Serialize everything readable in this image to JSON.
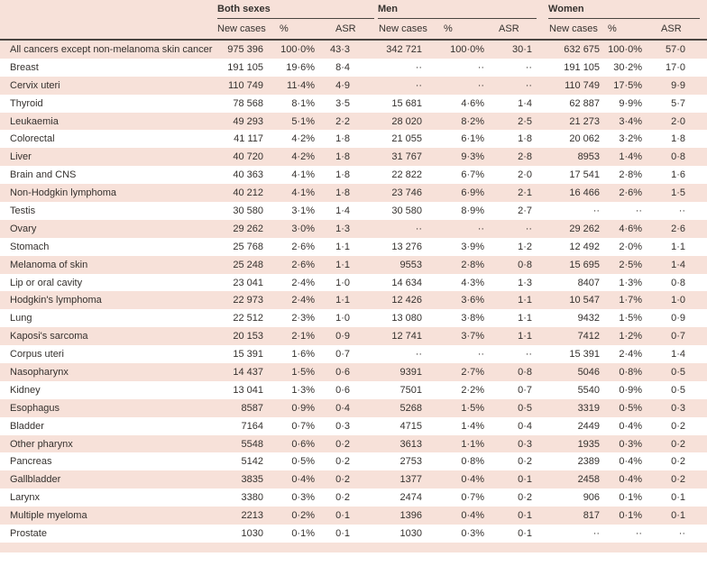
{
  "colors": {
    "row_pink": "#f7e1d9",
    "row_white": "#ffffff",
    "text": "#35312e",
    "rule_dark": "#4a4440"
  },
  "table": {
    "column_groups": [
      {
        "label": "Both sexes"
      },
      {
        "label": "Men"
      },
      {
        "label": "Women"
      }
    ],
    "subheaders": [
      "New cases",
      "%",
      "ASR"
    ],
    "missing_marker": "··",
    "rows": [
      {
        "label": "All cancers except non-melanoma skin cancer",
        "both": [
          "975 396",
          "100·0%",
          "43·3"
        ],
        "men": [
          "342 721",
          "100·0%",
          "30·1"
        ],
        "women": [
          "632 675",
          "100·0%",
          "57·0"
        ]
      },
      {
        "label": "Breast",
        "both": [
          "191 105",
          "19·6%",
          "8·4"
        ],
        "men": [
          "··",
          "··",
          "··"
        ],
        "women": [
          "191 105",
          "30·2%",
          "17·0"
        ]
      },
      {
        "label": "Cervix uteri",
        "both": [
          "110 749",
          "11·4%",
          "4·9"
        ],
        "men": [
          "··",
          "··",
          "··"
        ],
        "women": [
          "110 749",
          "17·5%",
          "9·9"
        ]
      },
      {
        "label": "Thyroid",
        "both": [
          "78 568",
          "8·1%",
          "3·5"
        ],
        "men": [
          "15 681",
          "4·6%",
          "1·4"
        ],
        "women": [
          "62 887",
          "9·9%",
          "5·7"
        ]
      },
      {
        "label": "Leukaemia",
        "both": [
          "49 293",
          "5·1%",
          "2·2"
        ],
        "men": [
          "28 020",
          "8·2%",
          "2·5"
        ],
        "women": [
          "21 273",
          "3·4%",
          "2·0"
        ]
      },
      {
        "label": "Colorectal",
        "both": [
          "41 117",
          "4·2%",
          "1·8"
        ],
        "men": [
          "21 055",
          "6·1%",
          "1·8"
        ],
        "women": [
          "20 062",
          "3·2%",
          "1·8"
        ]
      },
      {
        "label": "Liver",
        "both": [
          "40 720",
          "4·2%",
          "1·8"
        ],
        "men": [
          "31 767",
          "9·3%",
          "2·8"
        ],
        "women": [
          "8953",
          "1·4%",
          "0·8"
        ]
      },
      {
        "label": "Brain and CNS",
        "both": [
          "40 363",
          "4·1%",
          "1·8"
        ],
        "men": [
          "22 822",
          "6·7%",
          "2·0"
        ],
        "women": [
          "17 541",
          "2·8%",
          "1·6"
        ]
      },
      {
        "label": "Non-Hodgkin lymphoma",
        "both": [
          "40 212",
          "4·1%",
          "1·8"
        ],
        "men": [
          "23 746",
          "6·9%",
          "2·1"
        ],
        "women": [
          "16 466",
          "2·6%",
          "1·5"
        ]
      },
      {
        "label": "Testis",
        "both": [
          "30 580",
          "3·1%",
          "1·4"
        ],
        "men": [
          "30 580",
          "8·9%",
          "2·7"
        ],
        "women": [
          "··",
          "··",
          "··"
        ]
      },
      {
        "label": "Ovary",
        "both": [
          "29 262",
          "3·0%",
          "1·3"
        ],
        "men": [
          "··",
          "··",
          "··"
        ],
        "women": [
          "29 262",
          "4·6%",
          "2·6"
        ]
      },
      {
        "label": "Stomach",
        "both": [
          "25 768",
          "2·6%",
          "1·1"
        ],
        "men": [
          "13 276",
          "3·9%",
          "1·2"
        ],
        "women": [
          "12 492",
          "2·0%",
          "1·1"
        ]
      },
      {
        "label": "Melanoma of skin",
        "both": [
          "25 248",
          "2·6%",
          "1·1"
        ],
        "men": [
          "9553",
          "2·8%",
          "0·8"
        ],
        "women": [
          "15 695",
          "2·5%",
          "1·4"
        ]
      },
      {
        "label": "Lip or oral cavity",
        "both": [
          "23 041",
          "2·4%",
          "1·0"
        ],
        "men": [
          "14 634",
          "4·3%",
          "1·3"
        ],
        "women": [
          "8407",
          "1·3%",
          "0·8"
        ]
      },
      {
        "label": "Hodgkin's lymphoma",
        "both": [
          "22 973",
          "2·4%",
          "1·1"
        ],
        "men": [
          "12 426",
          "3·6%",
          "1·1"
        ],
        "women": [
          "10 547",
          "1·7%",
          "1·0"
        ]
      },
      {
        "label": "Lung",
        "both": [
          "22 512",
          "2·3%",
          "1·0"
        ],
        "men": [
          "13 080",
          "3·8%",
          "1·1"
        ],
        "women": [
          "9432",
          "1·5%",
          "0·9"
        ]
      },
      {
        "label": "Kaposi's sarcoma",
        "both": [
          "20 153",
          "2·1%",
          "0·9"
        ],
        "men": [
          "12 741",
          "3·7%",
          "1·1"
        ],
        "women": [
          "7412",
          "1·2%",
          "0·7"
        ]
      },
      {
        "label": "Corpus uteri",
        "both": [
          "15 391",
          "1·6%",
          "0·7"
        ],
        "men": [
          "··",
          "··",
          "··"
        ],
        "women": [
          "15 391",
          "2·4%",
          "1·4"
        ]
      },
      {
        "label": "Nasopharynx",
        "both": [
          "14 437",
          "1·5%",
          "0·6"
        ],
        "men": [
          "9391",
          "2·7%",
          "0·8"
        ],
        "women": [
          "5046",
          "0·8%",
          "0·5"
        ]
      },
      {
        "label": "Kidney",
        "both": [
          "13 041",
          "1·3%",
          "0·6"
        ],
        "men": [
          "7501",
          "2·2%",
          "0·7"
        ],
        "women": [
          "5540",
          "0·9%",
          "0·5"
        ]
      },
      {
        "label": "Esophagus",
        "both": [
          "8587",
          "0·9%",
          "0·4"
        ],
        "men": [
          "5268",
          "1·5%",
          "0·5"
        ],
        "women": [
          "3319",
          "0·5%",
          "0·3"
        ]
      },
      {
        "label": "Bladder",
        "both": [
          "7164",
          "0·7%",
          "0·3"
        ],
        "men": [
          "4715",
          "1·4%",
          "0·4"
        ],
        "women": [
          "2449",
          "0·4%",
          "0·2"
        ]
      },
      {
        "label": "Other pharynx",
        "both": [
          "5548",
          "0·6%",
          "0·2"
        ],
        "men": [
          "3613",
          "1·1%",
          "0·3"
        ],
        "women": [
          "1935",
          "0·3%",
          "0·2"
        ]
      },
      {
        "label": "Pancreas",
        "both": [
          "5142",
          "0·5%",
          "0·2"
        ],
        "men": [
          "2753",
          "0·8%",
          "0·2"
        ],
        "women": [
          "2389",
          "0·4%",
          "0·2"
        ]
      },
      {
        "label": "Gallbladder",
        "both": [
          "3835",
          "0·4%",
          "0·2"
        ],
        "men": [
          "1377",
          "0·4%",
          "0·1"
        ],
        "women": [
          "2458",
          "0·4%",
          "0·2"
        ]
      },
      {
        "label": "Larynx",
        "both": [
          "3380",
          "0·3%",
          "0·2"
        ],
        "men": [
          "2474",
          "0·7%",
          "0·2"
        ],
        "women": [
          "906",
          "0·1%",
          "0·1"
        ]
      },
      {
        "label": "Multiple myeloma",
        "both": [
          "2213",
          "0·2%",
          "0·1"
        ],
        "men": [
          "1396",
          "0·4%",
          "0·1"
        ],
        "women": [
          "817",
          "0·1%",
          "0·1"
        ]
      },
      {
        "label": "Prostate",
        "both": [
          "1030",
          "0·1%",
          "0·1"
        ],
        "men": [
          "1030",
          "0·3%",
          "0·1"
        ],
        "women": [
          "··",
          "··",
          "··"
        ]
      }
    ]
  }
}
